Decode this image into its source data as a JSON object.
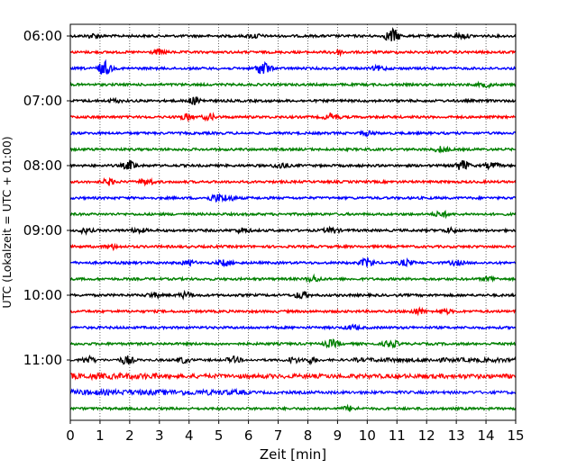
{
  "chart_data": {
    "type": "line",
    "xlabel": "Zeit  [min]",
    "ylabel": "UTC (Lokalzeit = UTC + 01:00)",
    "xlim": [
      0,
      15
    ],
    "x_ticks": [
      "0",
      "1",
      "2",
      "3",
      "4",
      "5",
      "6",
      "7",
      "8",
      "9",
      "10",
      "11",
      "12",
      "13",
      "14",
      "15"
    ],
    "y_tick_labels": [
      "06:00",
      "07:00",
      "08:00",
      "09:00",
      "10:00",
      "11:00"
    ],
    "grid": "vertical dotted",
    "trace_colors": [
      "#000000",
      "#ff0000",
      "#0000ff",
      "#008000"
    ],
    "traces": [
      {
        "start": "06:00",
        "color": "#000000",
        "events": [
          [
            10.85,
            1.0
          ],
          [
            0.8,
            0.3
          ],
          [
            6.2,
            0.3
          ],
          [
            13.2,
            0.3
          ]
        ]
      },
      {
        "start": "06:15",
        "color": "#ff0000",
        "events": [
          [
            3.0,
            0.3
          ],
          [
            9.0,
            0.3
          ]
        ]
      },
      {
        "start": "06:30",
        "color": "#0000ff",
        "events": [
          [
            1.15,
            1.0
          ],
          [
            6.5,
            1.0
          ],
          [
            10.4,
            0.3
          ]
        ]
      },
      {
        "start": "06:45",
        "color": "#008000",
        "events": [
          [
            14.0,
            0.3
          ]
        ]
      },
      {
        "start": "07:00",
        "color": "#000000",
        "events": [
          [
            4.2,
            0.5
          ],
          [
            1.5,
            0.2
          ]
        ]
      },
      {
        "start": "07:15",
        "color": "#ff0000",
        "events": [
          [
            3.9,
            0.4
          ],
          [
            4.7,
            0.4
          ],
          [
            8.8,
            0.5
          ]
        ]
      },
      {
        "start": "07:30",
        "color": "#0000ff",
        "events": [
          [
            10.0,
            0.3
          ]
        ]
      },
      {
        "start": "07:45",
        "color": "#008000",
        "events": [
          [
            12.5,
            0.4
          ]
        ]
      },
      {
        "start": "08:00",
        "color": "#000000",
        "events": [
          [
            2.0,
            0.6
          ],
          [
            7.1,
            0.4
          ],
          [
            13.2,
            0.7
          ],
          [
            14.2,
            0.4
          ]
        ]
      },
      {
        "start": "08:15",
        "color": "#ff0000",
        "events": [
          [
            1.3,
            0.4
          ],
          [
            2.6,
            0.4
          ]
        ]
      },
      {
        "start": "08:30",
        "color": "#0000ff",
        "events": [
          [
            4.9,
            0.5
          ],
          [
            5.3,
            0.4
          ]
        ]
      },
      {
        "start": "08:45",
        "color": "#008000",
        "events": [
          [
            12.5,
            0.4
          ]
        ]
      },
      {
        "start": "09:00",
        "color": "#000000",
        "events": [
          [
            0.5,
            0.3
          ],
          [
            2.3,
            0.3
          ],
          [
            5.8,
            0.3
          ],
          [
            8.8,
            0.4
          ],
          [
            12.8,
            0.3
          ]
        ]
      },
      {
        "start": "09:15",
        "color": "#ff0000",
        "events": [
          [
            1.4,
            0.3
          ]
        ]
      },
      {
        "start": "09:30",
        "color": "#0000ff",
        "events": [
          [
            4.0,
            0.3
          ],
          [
            5.2,
            0.4
          ],
          [
            10.0,
            0.6
          ],
          [
            11.3,
            0.4
          ],
          [
            13.0,
            0.3
          ]
        ]
      },
      {
        "start": "09:45",
        "color": "#008000",
        "events": [
          [
            8.2,
            0.4
          ],
          [
            14.1,
            0.3
          ]
        ]
      },
      {
        "start": "10:00",
        "color": "#000000",
        "events": [
          [
            2.8,
            0.3
          ],
          [
            3.9,
            0.4
          ],
          [
            7.8,
            0.5
          ]
        ]
      },
      {
        "start": "10:15",
        "color": "#ff0000",
        "events": [
          [
            11.7,
            0.4
          ],
          [
            12.6,
            0.3
          ]
        ]
      },
      {
        "start": "10:30",
        "color": "#0000ff",
        "events": [
          [
            9.5,
            0.3
          ]
        ]
      },
      {
        "start": "10:45",
        "color": "#008000",
        "events": [
          [
            8.8,
            0.5
          ],
          [
            10.8,
            0.5
          ]
        ]
      },
      {
        "start": "11:00",
        "color": "#000000",
        "events": [
          [
            0.6,
            0.5
          ],
          [
            1.9,
            0.6
          ],
          [
            3.8,
            0.4
          ],
          [
            5.5,
            0.4
          ],
          [
            7.5,
            0.4
          ],
          [
            8.1,
            0.4
          ]
        ]
      },
      {
        "start": "11:15",
        "color": "#ff0000",
        "events": []
      },
      {
        "start": "11:30",
        "color": "#0000ff",
        "events": []
      },
      {
        "start": "11:45",
        "color": "#008000",
        "events": [
          [
            9.4,
            0.3
          ]
        ]
      }
    ]
  }
}
